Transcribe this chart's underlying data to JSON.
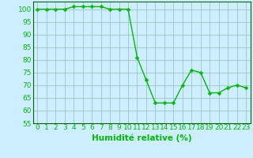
{
  "x": [
    0,
    1,
    2,
    3,
    4,
    5,
    6,
    7,
    8,
    9,
    10,
    11,
    12,
    13,
    14,
    15,
    16,
    17,
    18,
    19,
    20,
    21,
    22,
    23
  ],
  "y": [
    100,
    100,
    100,
    100,
    101,
    101,
    101,
    101,
    100,
    100,
    100,
    81,
    72,
    63,
    63,
    63,
    70,
    76,
    75,
    67,
    67,
    69,
    70,
    69
  ],
  "line_color": "#00bb00",
  "marker_color": "#00bb00",
  "bg_color": "#cceeff",
  "grid_color": "#99bbbb",
  "xlabel": "Humidité relative (%)",
  "xlabel_color": "#00bb00",
  "xlim": [
    -0.5,
    23.5
  ],
  "ylim": [
    55,
    103
  ],
  "yticks": [
    55,
    60,
    65,
    70,
    75,
    80,
    85,
    90,
    95,
    100
  ],
  "xticks": [
    0,
    1,
    2,
    3,
    4,
    5,
    6,
    7,
    8,
    9,
    10,
    11,
    12,
    13,
    14,
    15,
    16,
    17,
    18,
    19,
    20,
    21,
    22,
    23
  ],
  "tick_fontsize": 6.5,
  "xlabel_fontsize": 7.5,
  "marker_size": 2.5,
  "line_width": 1.0
}
